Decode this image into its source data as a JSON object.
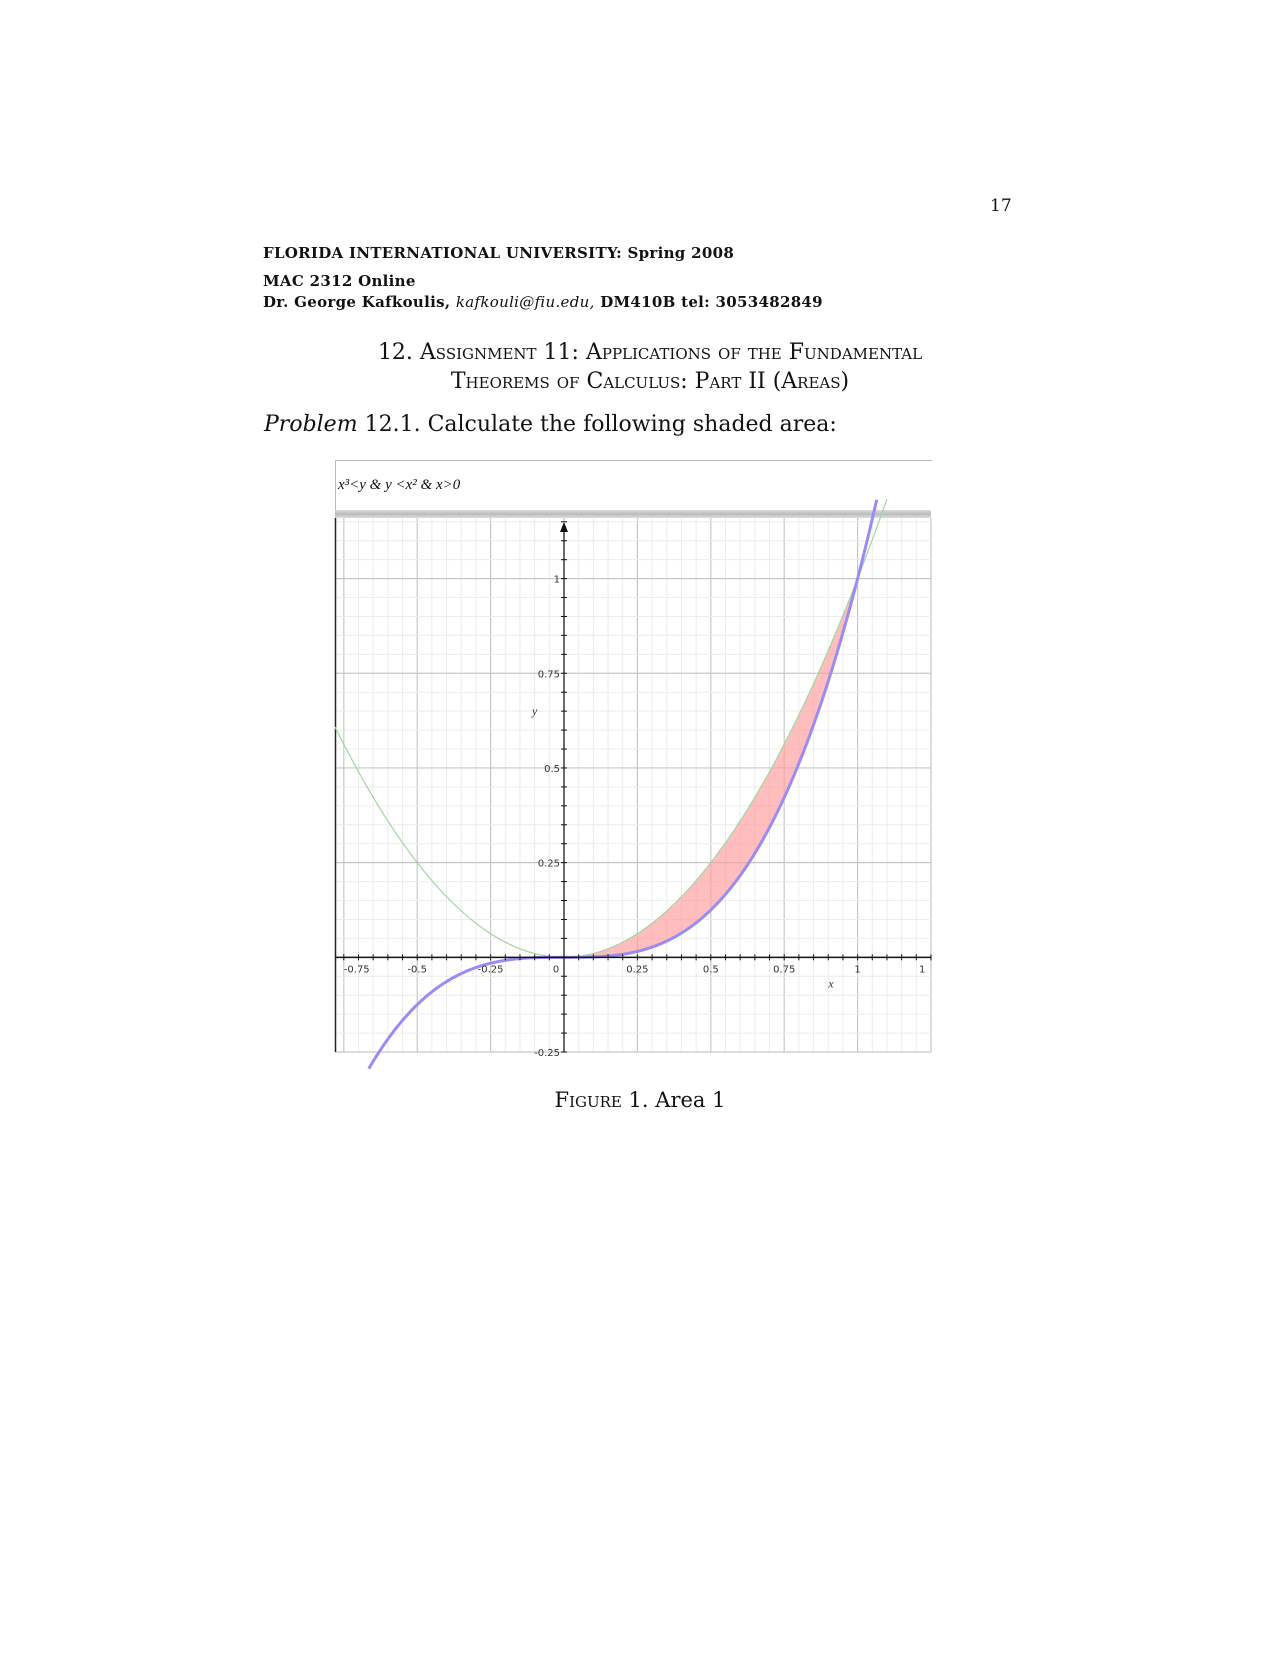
{
  "page_number": "17",
  "header": {
    "line1": "FLORIDA INTERNATIONAL UNIVERSITY: Spring 2008",
    "line2": "MAC 2312 Online",
    "line3_name": "Dr. George Kafkoulis,",
    "line3_email": "kafkouli@fiu.edu,",
    "line3_rest": "DM410B tel: 3053482849"
  },
  "section_title_1": "12. Assignment 11: Applications of the Fundamental",
  "section_title_2": "Theorems of Calculus: Part II (Areas)",
  "problem": {
    "label": "Problem",
    "number": "12.1.",
    "text": "Calculate the following shaded area:"
  },
  "figure_caption": {
    "label": "Figure 1.",
    "text": "Area 1"
  },
  "chart_data": {
    "type": "area",
    "title": "x³<y & y <x² & x>0",
    "xlabel": "x",
    "ylabel": "y",
    "xlim": [
      -0.78,
      1.25
    ],
    "ylim": [
      -0.25,
      1.16
    ],
    "x_ticks": [
      "-0.75",
      "-0.5",
      "-0.25",
      "0",
      "0.25",
      "0.5",
      "0.75",
      "1",
      "1"
    ],
    "y_ticks": [
      "1",
      "0.75",
      "0.5",
      "0.25",
      "-0.25"
    ],
    "grid": true,
    "series": [
      {
        "expression": "y = x^2",
        "color": "#9fd89f"
      },
      {
        "expression": "y = x^3",
        "color": "#9a8cf5"
      }
    ],
    "shaded_region": {
      "condition": "x^3 < y < x^2, x > 0",
      "x_range": [
        0,
        1
      ],
      "color": "#ff9999"
    }
  }
}
